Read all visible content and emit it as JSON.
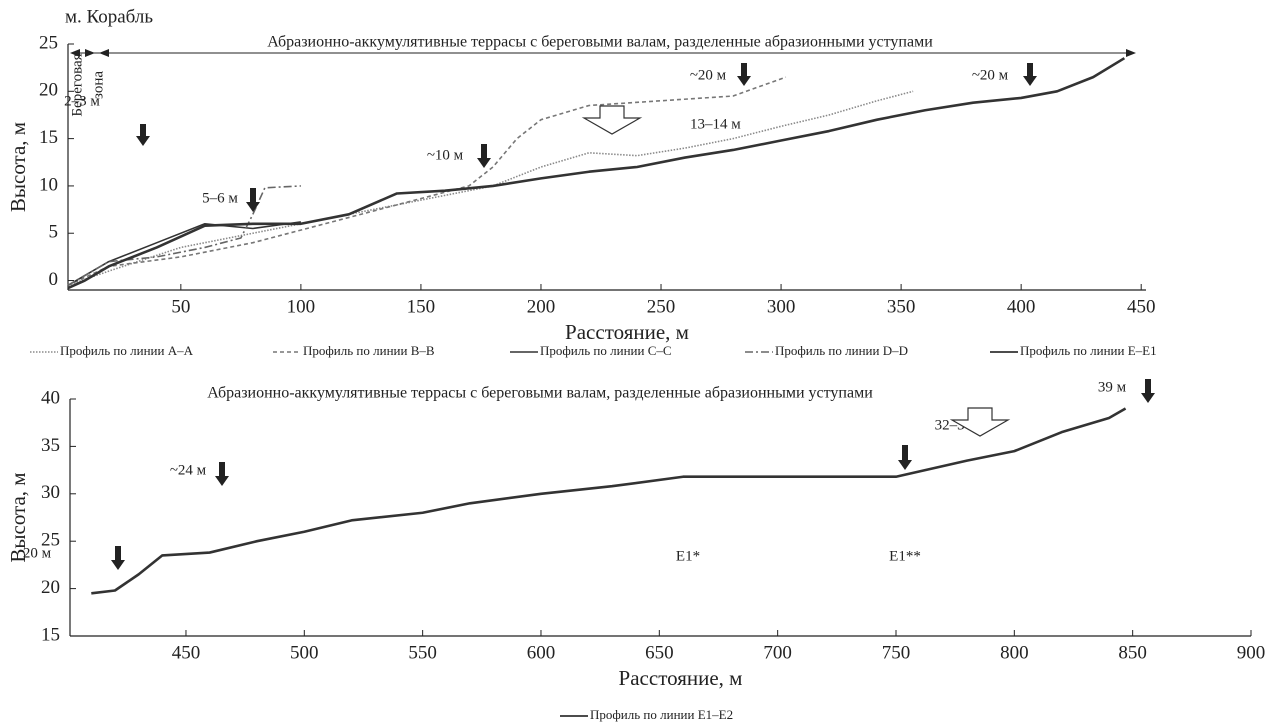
{
  "chart_data": [
    {
      "type": "line",
      "annotations": [
        "м. Корабль",
        "Береговая",
        "зона",
        "Абразионно-аккумулятивные террасы с береговыми валам, разделенные абразионными уступами",
        "2–3 м",
        "5–6 м",
        "~10 м",
        "~20 м",
        "13–14 м",
        "~20 м"
      ],
      "y_label": "Высота, м",
      "x_label": "Расстояние, м",
      "xlim": [
        3,
        452
      ],
      "ylim": [
        -1,
        25
      ],
      "xticks": [
        50,
        100,
        150,
        200,
        250,
        300,
        350,
        400,
        450
      ],
      "yticks": [
        0,
        5,
        10,
        15,
        20,
        25
      ],
      "series": [
        {
          "name": "Профиль по линии A–A",
          "color": "#8a8a8a",
          "style": "dotted",
          "x": [
            3,
            20,
            50,
            80,
            100,
            130,
            160,
            180,
            200,
            220,
            240,
            260,
            280,
            300,
            320,
            340,
            355
          ],
          "values": [
            -0.5,
            1,
            3.5,
            5,
            6,
            7.5,
            9,
            10,
            12,
            13.5,
            13.2,
            14,
            15,
            16.3,
            17.5,
            19,
            20
          ]
        },
        {
          "name": "Профиль по линии B–B",
          "color": "#777777",
          "style": "dashed",
          "x": [
            3,
            20,
            50,
            80,
            110,
            140,
            170,
            180,
            190,
            200,
            220,
            250,
            280,
            302
          ],
          "values": [
            -0.5,
            1.5,
            2.5,
            4,
            6,
            8,
            10,
            12,
            15,
            17,
            18.5,
            19,
            19.5,
            21.5
          ]
        },
        {
          "name": "Профиль по линии C–C",
          "color": "#333333",
          "style": "solid",
          "x": [
            3,
            20,
            40,
            60,
            80,
            100
          ],
          "values": [
            -0.5,
            2,
            4,
            6,
            5.5,
            6.2
          ]
        },
        {
          "name": "Профиль по линии D–D",
          "color": "#666666",
          "style": "dashdot",
          "x": [
            3,
            20,
            40,
            60,
            75,
            80,
            85,
            100
          ],
          "values": [
            -0.5,
            2,
            2.5,
            3.5,
            4.5,
            7,
            9.8,
            10
          ]
        },
        {
          "name": "Профиль по линии E–E1",
          "color": "#333333",
          "style": "thick",
          "x": [
            3,
            10,
            20,
            40,
            60,
            80,
            100,
            120,
            140,
            160,
            180,
            200,
            220,
            240,
            260,
            280,
            300,
            320,
            340,
            360,
            380,
            400,
            415,
            430,
            443
          ],
          "values": [
            -0.8,
            0,
            1.5,
            3.5,
            5.8,
            6,
            6,
            7,
            9.2,
            9.5,
            10,
            10.8,
            11.5,
            12,
            13,
            13.8,
            14.8,
            15.8,
            17,
            18,
            18.8,
            19.3,
            20,
            21.5,
            23.5
          ]
        }
      ]
    },
    {
      "type": "line",
      "annotations": [
        "Абразионно-аккумулятивные террасы с береговыми валам, разделенные абразионными уступами",
        "20 м",
        "~24 м",
        "E1*",
        "E1**",
        "32–34 м",
        "39 м"
      ],
      "y_label": "Высота, м",
      "x_label": "Расстояние, м",
      "xlim": [
        401,
        900
      ],
      "ylim": [
        15,
        40
      ],
      "xticks": [
        450,
        500,
        550,
        600,
        650,
        700,
        750,
        800,
        850,
        900
      ],
      "yticks": [
        15,
        20,
        25,
        30,
        35,
        40
      ],
      "series": [
        {
          "name": "Профиль по линии E1–E2",
          "color": "#333333",
          "style": "thick",
          "x": [
            410,
            420,
            430,
            440,
            460,
            480,
            500,
            520,
            550,
            570,
            600,
            630,
            660,
            700,
            750,
            780,
            800,
            820,
            840,
            847
          ],
          "values": [
            19.5,
            19.8,
            21.5,
            23.5,
            23.8,
            25,
            26,
            27.2,
            28,
            29,
            30,
            30.8,
            31.8,
            31.8,
            31.8,
            33.5,
            34.5,
            36.5,
            38,
            39
          ]
        }
      ]
    }
  ]
}
